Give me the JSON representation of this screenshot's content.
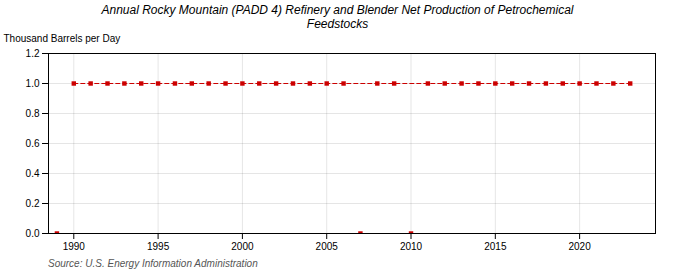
{
  "chart_data": {
    "type": "line",
    "title": "Annual Rocky Mountain (PADD 4) Refinery and Blender Net Production of Petrochemical\nFeedstocks",
    "ylabel": "Thousand Barrels per Day",
    "source": "Source: U.S. Energy Information Administration",
    "series": [
      {
        "x": [
          1990,
          1991,
          1992,
          1993,
          1994,
          1995,
          1996,
          1997,
          1998,
          1999,
          2000,
          2001,
          2002,
          2003,
          2004,
          2005,
          2006,
          2008,
          2009,
          2011,
          2012,
          2013,
          2014,
          2015,
          2016,
          2017,
          2018,
          2019,
          2020,
          2021,
          2022,
          2023
        ],
        "values": [
          1.0,
          1.0,
          1.0,
          1.0,
          1.0,
          1.0,
          1.0,
          1.0,
          1.0,
          1.0,
          1.0,
          1.0,
          1.0,
          1.0,
          1.0,
          1.0,
          1.0,
          1.0,
          1.0,
          1.0,
          1.0,
          1.0,
          1.0,
          1.0,
          1.0,
          1.0,
          1.0,
          1.0,
          1.0,
          1.0,
          1.0,
          1.0
        ],
        "color": "#cc0000",
        "marker": "square",
        "line_style": "dashed"
      },
      {
        "x": [
          1989,
          2007,
          2010
        ],
        "values": [
          0.0,
          0.0,
          0.0
        ],
        "color": "#cc0000",
        "marker": "square",
        "line_style": "none"
      }
    ],
    "xlim": [
      1988.5,
      2024.5
    ],
    "xticks": [
      1990,
      1995,
      2000,
      2005,
      2010,
      2015,
      2020
    ],
    "ylim": [
      0.0,
      1.2
    ],
    "yticks": [
      {
        "value": 0.0,
        "label": "0.0"
      },
      0.2,
      0.4,
      0.6,
      0.8,
      {
        "value": 1.0,
        "label": "1.0"
      },
      1.2
    ],
    "grid": true
  }
}
